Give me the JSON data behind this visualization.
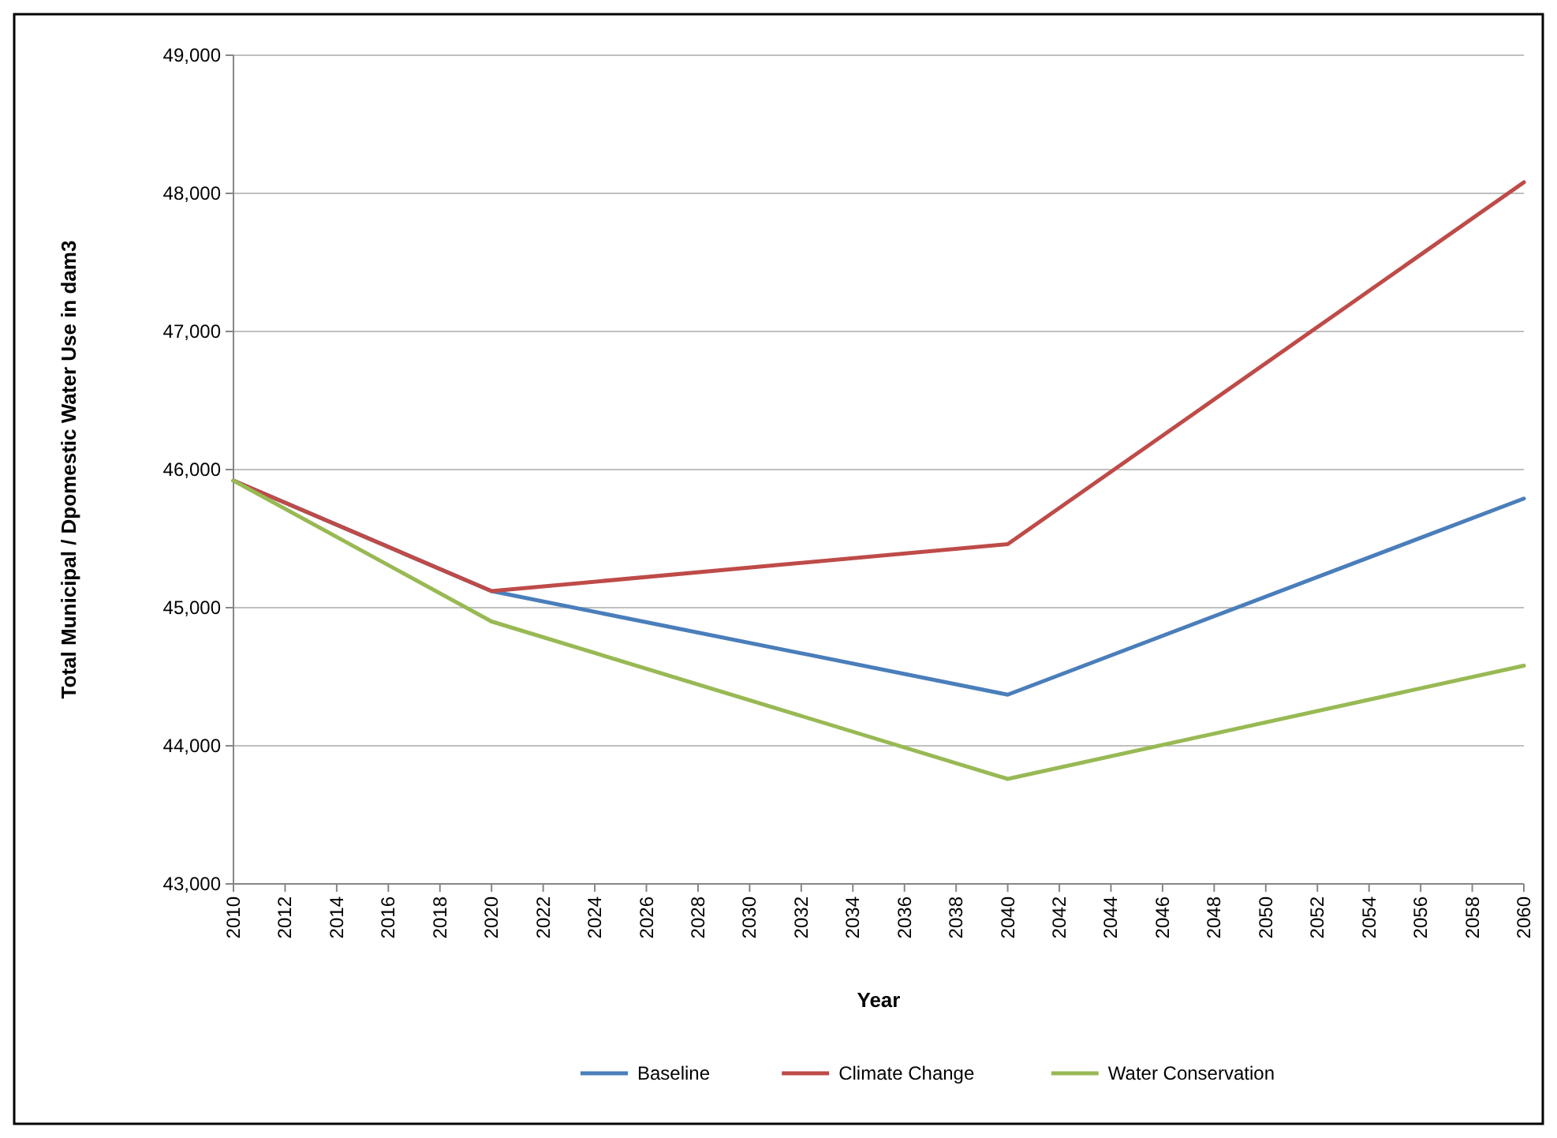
{
  "chart_data": {
    "type": "line",
    "xlabel": "Year",
    "ylabel": "Total Municipal / Dpomestic Water Use in dam3",
    "x": [
      2010,
      2020,
      2040,
      2060
    ],
    "series": [
      {
        "name": "Baseline",
        "color": "#4a7ebb",
        "values": [
          45920,
          45120,
          44370,
          45790
        ]
      },
      {
        "name": "Climate Change",
        "color": "#be4b48",
        "values": [
          45920,
          45120,
          45460,
          48080
        ]
      },
      {
        "name": "Water Conservation",
        "color": "#98b954",
        "values": [
          45920,
          44900,
          43760,
          44580
        ]
      }
    ],
    "xlim": [
      2010,
      2060
    ],
    "xticks": [
      2010,
      2012,
      2014,
      2016,
      2018,
      2020,
      2022,
      2024,
      2026,
      2028,
      2030,
      2032,
      2034,
      2036,
      2038,
      2040,
      2042,
      2044,
      2046,
      2048,
      2050,
      2052,
      2054,
      2056,
      2058,
      2060
    ],
    "ylim": [
      43000,
      49000
    ],
    "yticks": [
      {
        "value": 43000,
        "label": "43,000"
      },
      {
        "value": 44000,
        "label": "44,000"
      },
      {
        "value": 45000,
        "label": "45,000"
      },
      {
        "value": 46000,
        "label": "46,000"
      },
      {
        "value": 47000,
        "label": "47,000"
      },
      {
        "value": 48000,
        "label": "48,000"
      },
      {
        "value": 49000,
        "label": "49,000"
      }
    ],
    "grid": "y",
    "legend": "bottom",
    "marker": "none",
    "line_style": "solid"
  }
}
